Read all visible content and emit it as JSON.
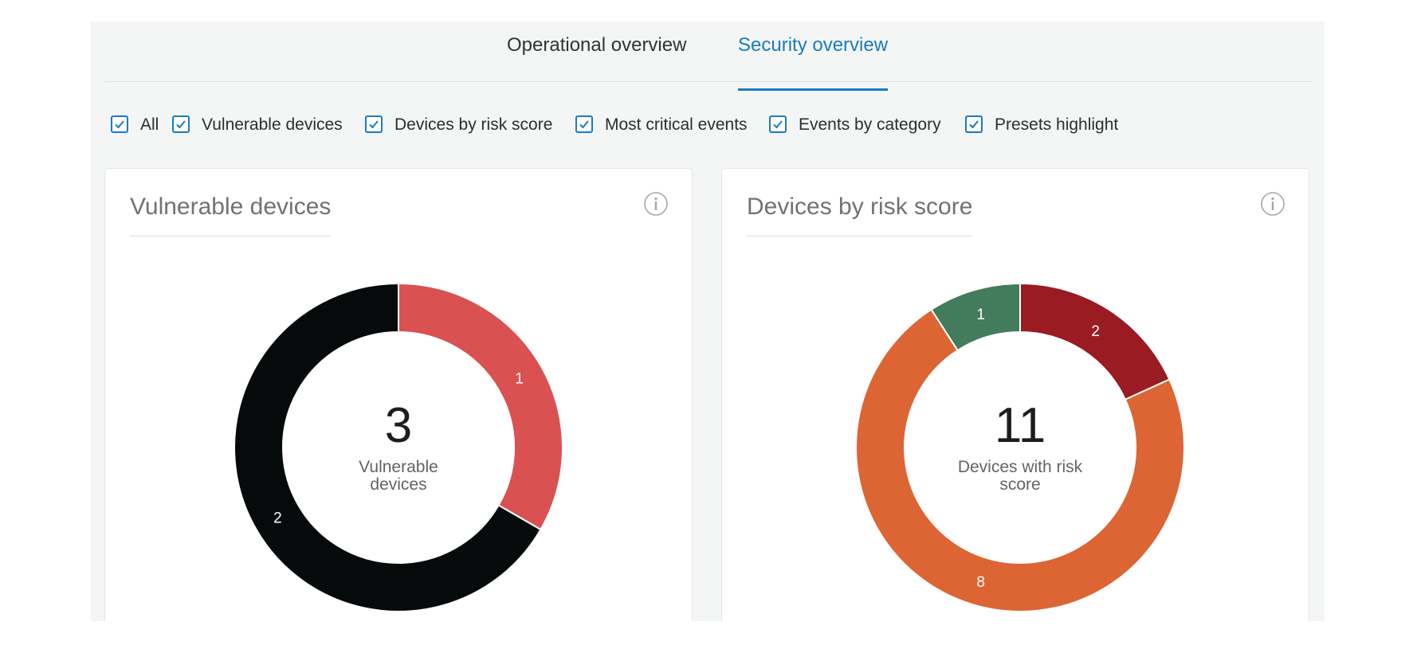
{
  "tabs": [
    {
      "label": "Operational overview",
      "active": false
    },
    {
      "label": "Security overview",
      "active": true
    }
  ],
  "filters": [
    {
      "label": "All",
      "checked": true
    },
    {
      "label": "Vulnerable devices",
      "checked": true
    },
    {
      "label": "Devices by risk score",
      "checked": true
    },
    {
      "label": "Most critical events",
      "checked": true
    },
    {
      "label": "Events by category",
      "checked": true
    },
    {
      "label": "Presets highlight",
      "checked": true
    }
  ],
  "cards": {
    "vulnerable": {
      "title": "Vulnerable devices",
      "total": "3",
      "center_label_line1": "Vulnerable",
      "center_label_line2": "devices"
    },
    "risk": {
      "title": "Devices by risk score",
      "total": "11",
      "center_label_line1": "Devices with risk",
      "center_label_line2": "score"
    }
  },
  "colors": {
    "accent": "#1a7cc1",
    "vuln_red": "#d95251",
    "vuln_black": "#070a0b",
    "risk_darkred": "#9a1b22",
    "risk_orange": "#dd6534",
    "risk_green": "#437c5d"
  },
  "icons": {
    "checkbox": "checkmark-icon",
    "info": "info-icon"
  },
  "chart_data": [
    {
      "type": "pie",
      "title": "Vulnerable devices",
      "donut": true,
      "slices": [
        {
          "value": 1,
          "label": "1",
          "color": "#d95251"
        },
        {
          "value": 2,
          "label": "2",
          "color": "#070a0b"
        }
      ]
    },
    {
      "type": "pie",
      "title": "Devices by risk score",
      "donut": true,
      "slices": [
        {
          "value": 2,
          "label": "2",
          "color": "#9a1b22"
        },
        {
          "value": 8,
          "label": "8",
          "color": "#dd6534"
        },
        {
          "value": 1,
          "label": "1",
          "color": "#437c5d"
        }
      ]
    }
  ]
}
